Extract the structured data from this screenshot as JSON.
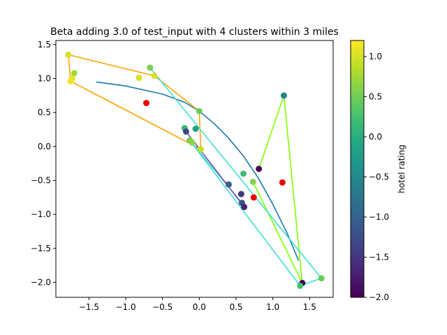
{
  "chart_data": {
    "type": "scatter",
    "title": "Beta adding 3.0 of test_input with 4 clusters within 3 miles",
    "xlabel": "",
    "ylabel": "",
    "xlim": [
      -1.95,
      1.82
    ],
    "ylim": [
      -2.22,
      1.56
    ],
    "x_ticks": [
      -1.5,
      -1.0,
      -0.5,
      0.0,
      0.5,
      1.0,
      1.5
    ],
    "y_ticks": [
      -2.0,
      -1.5,
      -1.0,
      -0.5,
      0.0,
      0.5,
      1.0,
      1.5
    ],
    "grid": false,
    "colorbar": {
      "label": "hotel rating",
      "range": [
        -2.0,
        1.2
      ],
      "ticks": [
        -2.0,
        -1.5,
        -1.0,
        -0.5,
        0.0,
        0.5,
        1.0
      ],
      "colormap": "viridis"
    },
    "points": [
      {
        "x": -1.78,
        "y": 1.35,
        "c": 1.0
      },
      {
        "x": -1.7,
        "y": 1.08,
        "c": 0.75
      },
      {
        "x": -1.73,
        "y": 1.0,
        "c": 1.05
      },
      {
        "x": -1.75,
        "y": 0.96,
        "c": 1.15
      },
      {
        "x": -0.82,
        "y": 1.01,
        "c": 1.0
      },
      {
        "x": -0.67,
        "y": 1.16,
        "c": 0.55
      },
      {
        "x": -0.61,
        "y": 1.04,
        "c": 1.0
      },
      {
        "x": 0.0,
        "y": 0.52,
        "c": 0.45
      },
      {
        "x": -0.2,
        "y": 0.27,
        "c": 0.15
      },
      {
        "x": -0.05,
        "y": 0.26,
        "c": -0.2
      },
      {
        "x": -0.18,
        "y": 0.22,
        "c": -1.3
      },
      {
        "x": -0.13,
        "y": 0.09,
        "c": 0.5
      },
      {
        "x": -0.1,
        "y": 0.06,
        "c": 0.65
      },
      {
        "x": 0.02,
        "y": -0.04,
        "c": 0.9
      },
      {
        "x": 0.6,
        "y": -0.4,
        "c": 0.2
      },
      {
        "x": 0.73,
        "y": -0.52,
        "c": 0.6
      },
      {
        "x": 0.4,
        "y": -0.56,
        "c": -1.0
      },
      {
        "x": 0.57,
        "y": -0.7,
        "c": -1.5
      },
      {
        "x": 0.58,
        "y": -0.83,
        "c": -1.2
      },
      {
        "x": 0.61,
        "y": -0.89,
        "c": -1.7
      },
      {
        "x": 0.81,
        "y": -0.33,
        "c": -2.0
      },
      {
        "x": 1.15,
        "y": 0.75,
        "c": -0.6
      },
      {
        "x": 1.4,
        "y": -2.01,
        "c": -2.0
      },
      {
        "x": 1.37,
        "y": -2.05,
        "c": 0.25
      },
      {
        "x": 1.66,
        "y": -1.94,
        "c": 0.45
      }
    ],
    "highlighted_points": {
      "color": "#ee0000",
      "points": [
        {
          "x": -0.72,
          "y": 0.64
        },
        {
          "x": 0.74,
          "y": -0.75
        },
        {
          "x": 1.13,
          "y": -0.53
        }
      ]
    },
    "polygons": [
      {
        "color": "#ffa500",
        "points": [
          [
            -1.78,
            1.35
          ],
          [
            -0.61,
            1.04
          ],
          [
            0.0,
            0.52
          ],
          [
            0.02,
            -0.04
          ],
          [
            -1.75,
            0.96
          ],
          [
            -1.78,
            1.35
          ]
        ]
      },
      {
        "color": "#7fff00",
        "points": [
          [
            0.81,
            -0.33
          ],
          [
            1.15,
            0.75
          ],
          [
            1.4,
            -2.01
          ],
          [
            0.73,
            -0.52
          ]
        ]
      },
      {
        "color": "#40e0d0",
        "points": [
          [
            -0.67,
            1.16
          ],
          [
            1.66,
            -1.94
          ],
          [
            1.37,
            -2.05
          ],
          [
            -0.13,
            0.09
          ],
          [
            0.58,
            -0.83
          ]
        ]
      },
      {
        "color": "#7b48c0",
        "points": [
          [
            -0.18,
            0.22
          ],
          [
            0.61,
            -0.89
          ]
        ]
      },
      {
        "color": "#d04060",
        "points": [
          [
            0.36,
            -0.52
          ],
          [
            0.4,
            -0.56
          ]
        ]
      }
    ],
    "curve": {
      "color": "#1f77b4",
      "points": [
        [
          -1.4,
          0.95
        ],
        [
          -1.0,
          0.89
        ],
        [
          -0.5,
          0.77
        ],
        [
          -0.2,
          0.65
        ],
        [
          0.0,
          0.52
        ],
        [
          0.2,
          0.34
        ],
        [
          0.4,
          0.12
        ],
        [
          0.6,
          -0.14
        ],
        [
          0.8,
          -0.46
        ],
        [
          1.0,
          -0.85
        ],
        [
          1.2,
          -1.29
        ],
        [
          1.35,
          -1.68
        ]
      ]
    }
  }
}
